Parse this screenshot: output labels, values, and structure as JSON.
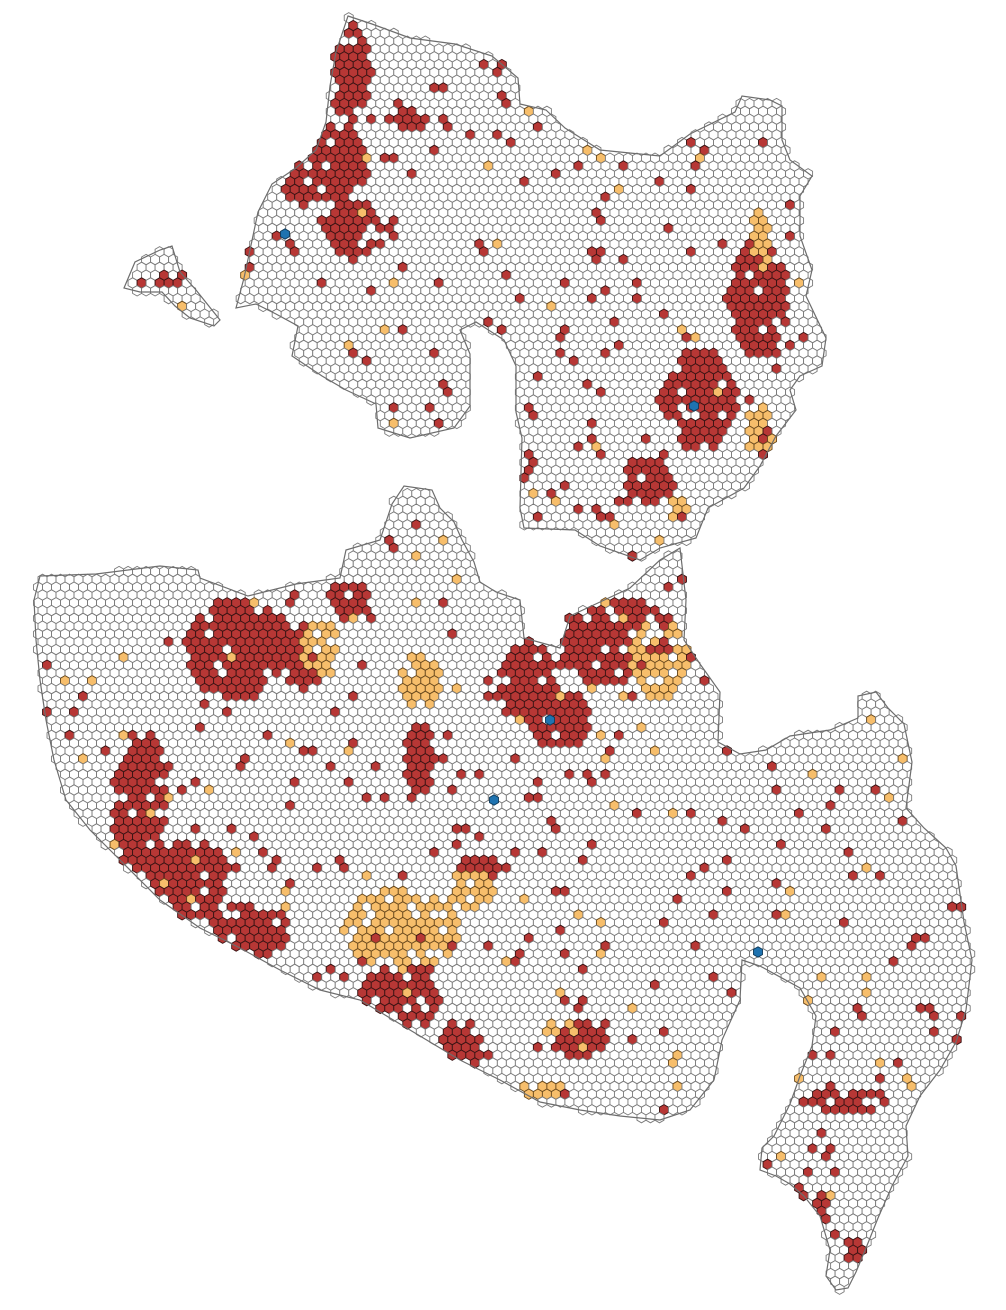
{
  "map": {
    "kind": "hexagonal-grid-choropleth",
    "labels_present": false,
    "categories": [
      {
        "id": "empty",
        "fill": "#ffffff",
        "stroke": "#7a7a7a"
      },
      {
        "id": "red",
        "fill": "#b73735",
        "stroke": "#3a1414"
      },
      {
        "id": "orange",
        "fill": "#f7be6b",
        "stroke": "#6a4a1e"
      },
      {
        "id": "blue",
        "fill": "#1f73b0",
        "stroke": "#0f3a5a"
      }
    ],
    "regions": [
      "island-small-west",
      "northern-landmass",
      "southern-landmass"
    ],
    "blue_marker_count": 5
  }
}
